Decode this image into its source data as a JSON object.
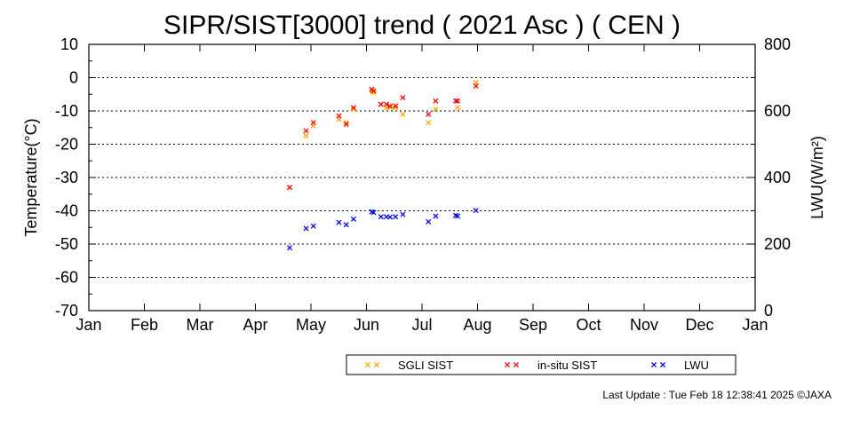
{
  "chart_data": {
    "type": "scatter",
    "title": "SIPR/SIST[3000] trend ( 2021 Asc ) ( CEN )",
    "xlabel": "",
    "ylabel": "Temperature(°C)",
    "y2label": "LWU(W/m²)",
    "x_ticks": [
      "Jan",
      "Feb",
      "Mar",
      "Apr",
      "May",
      "Jun",
      "Jul",
      "Aug",
      "Sep",
      "Oct",
      "Nov",
      "Dec",
      "Jan"
    ],
    "ylim": [
      -70,
      10
    ],
    "y_ticks": [
      10,
      0,
      -10,
      -20,
      -30,
      -40,
      -50,
      -60,
      -70
    ],
    "y2lim": [
      0,
      800
    ],
    "y2_ticks": [
      800,
      600,
      400,
      200,
      0
    ],
    "grid": true,
    "legend_position": "bottom",
    "series": [
      {
        "name": "SGLI SIST",
        "color": "#ffa500",
        "axis": "left",
        "x": [
          "2021-04-21",
          "2021-04-30",
          "2021-05-04",
          "2021-05-18",
          "2021-05-22",
          "2021-05-26",
          "2021-06-05",
          "2021-06-06",
          "2021-06-10",
          "2021-06-13",
          "2021-06-15",
          "2021-06-18",
          "2021-06-22",
          "2021-07-06",
          "2021-07-10",
          "2021-07-22",
          "2021-08-01"
        ],
        "y": [
          -33.0,
          -17.5,
          -14.5,
          -12.5,
          -13.5,
          -9.5,
          -4.0,
          -4.5,
          -8.0,
          -9.0,
          -9.0,
          -9.0,
          -11.0,
          -13.5,
          -9.5,
          -9.0,
          -1.5
        ]
      },
      {
        "name": "in-situ SIST",
        "color": "#ff0000",
        "axis": "left",
        "x": [
          "2021-04-21",
          "2021-04-30",
          "2021-05-04",
          "2021-05-18",
          "2021-05-22",
          "2021-05-26",
          "2021-06-05",
          "2021-06-06",
          "2021-06-10",
          "2021-06-13",
          "2021-06-15",
          "2021-06-18",
          "2021-06-22",
          "2021-07-06",
          "2021-07-10",
          "2021-07-21",
          "2021-07-22",
          "2021-08-01"
        ],
        "y": [
          -33.0,
          -16.0,
          -13.5,
          -11.5,
          -14.0,
          -9.0,
          -3.5,
          -4.0,
          -8.0,
          -8.0,
          -8.5,
          -8.5,
          -6.0,
          -11.0,
          -7.0,
          -7.0,
          -7.0,
          -2.5
        ]
      },
      {
        "name": "LWU",
        "color": "#0000ff",
        "axis": "right",
        "x": [
          "2021-04-21",
          "2021-04-30",
          "2021-05-04",
          "2021-05-18",
          "2021-05-22",
          "2021-05-26",
          "2021-06-05",
          "2021-06-06",
          "2021-06-10",
          "2021-06-13",
          "2021-06-15",
          "2021-06-18",
          "2021-06-22",
          "2021-07-06",
          "2021-07-10",
          "2021-07-21",
          "2021-07-22",
          "2021-08-01"
        ],
        "y": [
          189,
          247,
          254,
          265,
          258,
          275,
          297,
          295,
          282,
          282,
          281,
          282,
          289,
          267,
          284,
          286,
          284,
          301
        ]
      }
    ]
  },
  "footer": {
    "last_update": "Last Update : Tue Feb 18 12:38:41 2025 ©JAXA"
  }
}
